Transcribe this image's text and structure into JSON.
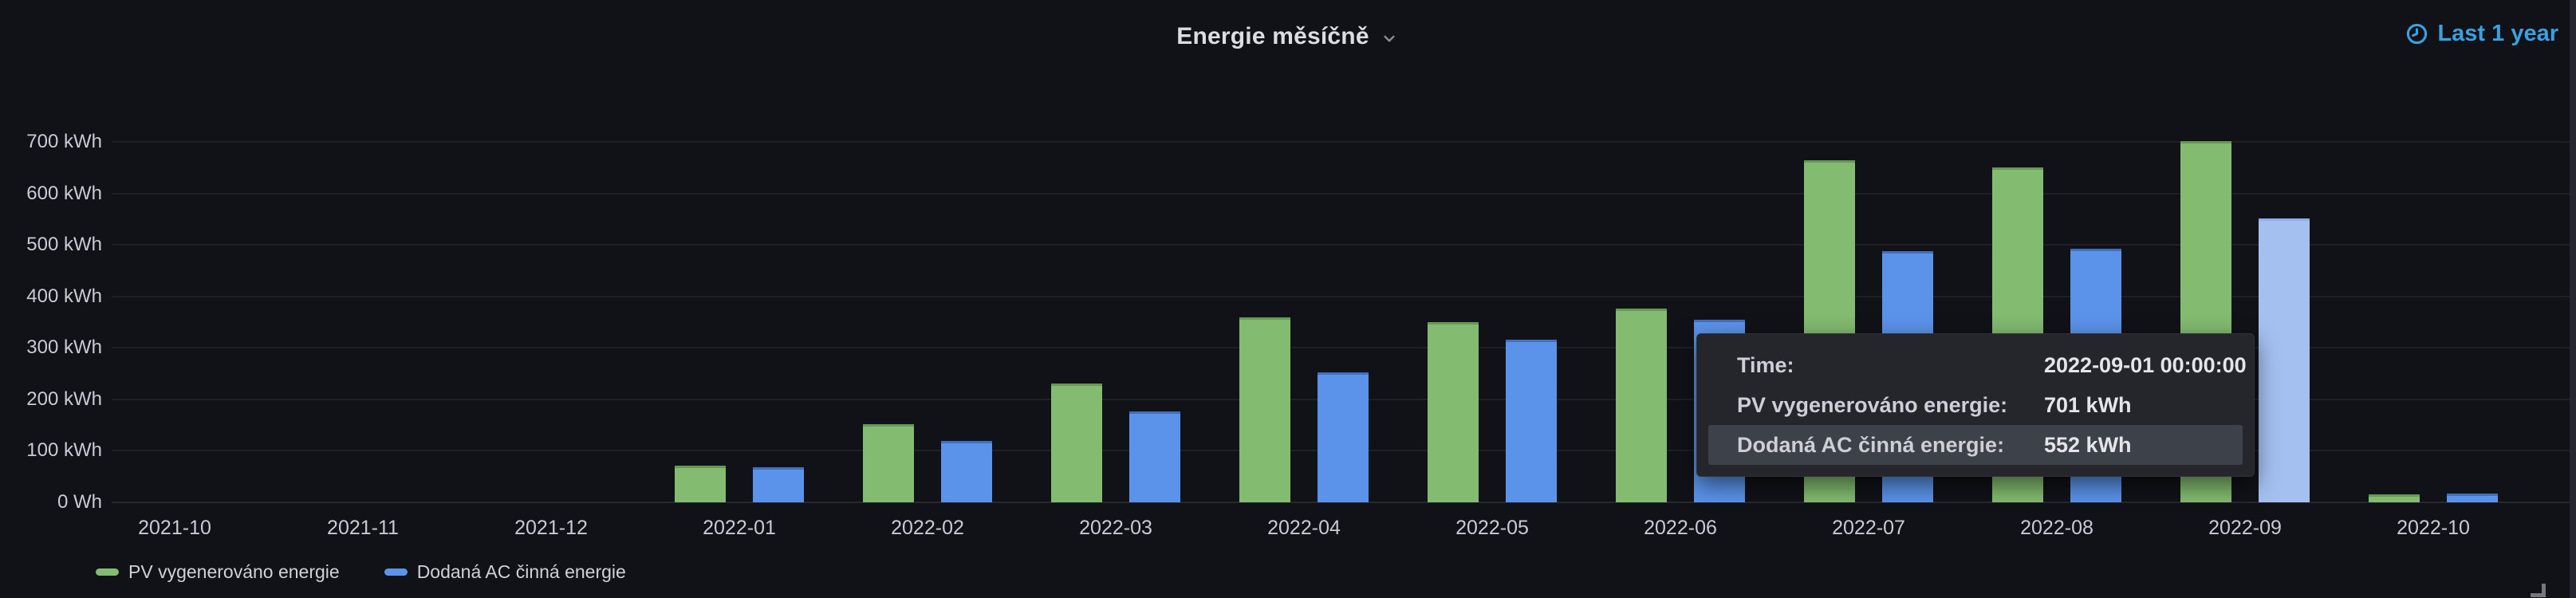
{
  "panel": {
    "title": "Energie měsíčně",
    "time_range": "Last 1 year"
  },
  "legend": {
    "position": "bottom-left",
    "items": [
      {
        "label": "PV vygenerováno energie",
        "color": "#83bb70"
      },
      {
        "label": "Dodaná AC činná energie",
        "color": "#5b93ea"
      }
    ]
  },
  "tooltip": {
    "time_label": "Time:",
    "time_value": "2022-09-01 00:00:00",
    "rows": [
      {
        "label": "PV vygenerováno energie:",
        "value": "701 kWh",
        "highlighted": false
      },
      {
        "label": "Dodaná AC činná energie:",
        "value": "552 kWh",
        "highlighted": true
      }
    ]
  },
  "colors": {
    "background": "#111217",
    "series_green": "#83bb70",
    "series_blue": "#5b93ea",
    "hovered_bar": "#a3c0f0",
    "time_range_blue": "#3aa0e0"
  },
  "chart_data": {
    "type": "bar",
    "title": "Energie měsíčně",
    "categories": [
      "2021-10",
      "2021-11",
      "2021-12",
      "2022-01",
      "2022-02",
      "2022-03",
      "2022-04",
      "2022-05",
      "2022-06",
      "2022-07",
      "2022-08",
      "2022-09",
      "2022-10"
    ],
    "series": [
      {
        "name": "PV vygenerováno energie",
        "color": "#83bb70",
        "values": [
          null,
          null,
          null,
          72,
          152,
          231,
          360,
          350,
          377,
          665,
          650,
          701,
          15
        ]
      },
      {
        "name": "Dodaná AC činná energie",
        "color": "#5b93ea",
        "values": [
          null,
          null,
          null,
          68,
          120,
          177,
          253,
          316,
          355,
          488,
          492,
          552,
          17
        ]
      }
    ],
    "ylabel_unit": "kWh",
    "ylim": [
      0,
      700
    ],
    "ytick_step": 100,
    "yticks": [
      "0 Wh",
      "100 kWh",
      "200 kWh",
      "300 kWh",
      "400 kWh",
      "500 kWh",
      "600 kWh",
      "700 kWh"
    ],
    "grid": true,
    "legend_position": "bottom-left",
    "hover": {
      "category": "2022-09",
      "series": "Dodaná AC činná energie",
      "series_index": 1,
      "color": "#a3c0f0"
    }
  }
}
